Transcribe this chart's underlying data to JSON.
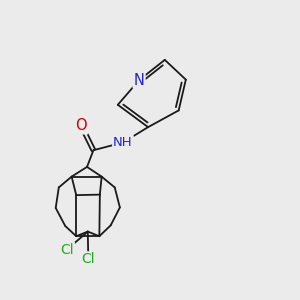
{
  "background_color": "#ebebeb",
  "bond_color": "#1a1a1a",
  "atom_colors": {
    "N": "#2222cc",
    "O": "#cc0000",
    "Cl": "#22aa22",
    "H": "#444444"
  },
  "fig_size": [
    3.0,
    3.0
  ],
  "dpi": 100
}
